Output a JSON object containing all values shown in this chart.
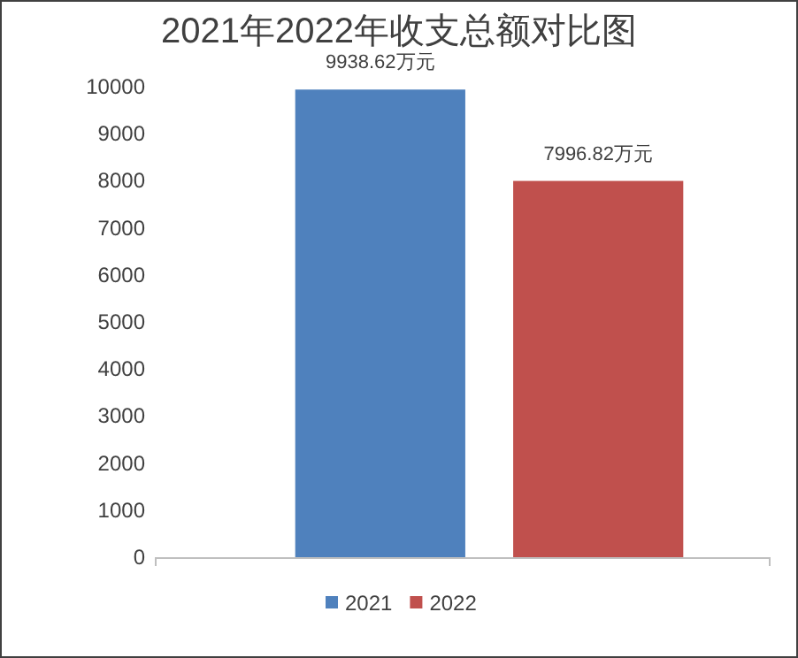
{
  "chart_data": {
    "type": "bar",
    "title": "2021年2022年收支总额对比图",
    "categories": [
      null
    ],
    "series": [
      {
        "name": "2021",
        "color": "#4f81bd",
        "values": [
          9938.62
        ],
        "value_labels": [
          "9938.62万元"
        ]
      },
      {
        "name": "2022",
        "color": "#c0504d",
        "values": [
          7996.82
        ],
        "value_labels": [
          "7996.82万元"
        ]
      }
    ],
    "ylim": [
      0,
      10000
    ],
    "yticks": [
      0,
      1000,
      2000,
      3000,
      4000,
      5000,
      6000,
      7000,
      8000,
      9000,
      10000
    ],
    "legend": "bottom"
  }
}
